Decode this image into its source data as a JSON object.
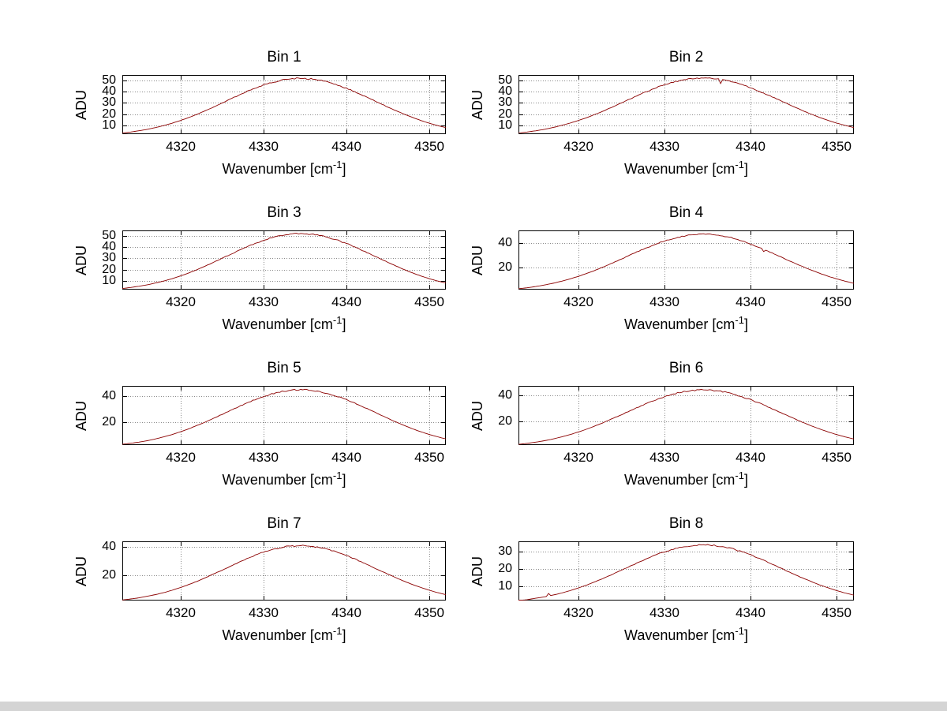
{
  "figure": {
    "background": "#ffffff",
    "window_edge_color": "#d4d4d4"
  },
  "chart_data": {
    "type": "line",
    "layout": "4x2-subplot-grid",
    "title": "",
    "y_label": "ADU",
    "line_color": "#8b0000",
    "grid_color": "#8a8a8a",
    "axis_color": "#000000",
    "grid": "on",
    "x": {
      "start": 4313,
      "step": 1,
      "lim": [
        4313,
        4352
      ],
      "ticks": [
        4320,
        4330,
        4340,
        4350
      ],
      "label": {
        "text": "Wavenumber [cm",
        "sup": "-1",
        "end": "]"
      }
    },
    "subplots": [
      {
        "type": "line",
        "title": "Bin 1",
        "ylim": [
          2,
          55
        ],
        "yticks": [
          10,
          20,
          30,
          40,
          50
        ],
        "noise": 0.6,
        "spikes": [],
        "values": [
          3.0,
          3.9,
          5.0,
          6.3,
          7.9,
          9.7,
          11.8,
          14.2,
          16.9,
          19.8,
          23.0,
          26.3,
          29.8,
          33.3,
          36.7,
          40.1,
          43.1,
          45.9,
          48.2,
          50.0,
          51.3,
          51.9,
          51.9,
          51.3,
          50.0,
          48.2,
          45.9,
          43.1,
          40.1,
          36.7,
          33.3,
          29.8,
          26.3,
          23.0,
          19.8,
          16.9,
          14.2,
          11.8,
          9.7,
          7.9
        ]
      },
      {
        "type": "line",
        "title": "Bin 2",
        "ylim": [
          2,
          55
        ],
        "yticks": [
          10,
          20,
          30,
          40,
          50
        ],
        "noise": 0.6,
        "spikes": [
          {
            "x": 4336.5,
            "dy": -3.5
          }
        ],
        "values": [
          3.0,
          3.9,
          5.0,
          6.3,
          7.9,
          9.8,
          11.9,
          14.3,
          17.0,
          20.0,
          23.2,
          26.6,
          30.1,
          33.6,
          37.1,
          40.4,
          43.6,
          46.3,
          48.7,
          50.5,
          51.8,
          52.4,
          52.4,
          51.8,
          50.5,
          48.7,
          46.3,
          43.6,
          40.4,
          37.1,
          33.6,
          30.1,
          26.6,
          23.2,
          20.0,
          17.0,
          14.3,
          11.9,
          9.8,
          7.9
        ]
      },
      {
        "type": "line",
        "title": "Bin 3",
        "ylim": [
          2,
          55
        ],
        "yticks": [
          10,
          20,
          30,
          40,
          50
        ],
        "noise": 0.6,
        "spikes": [],
        "values": [
          3.0,
          3.9,
          5.0,
          6.3,
          7.9,
          9.7,
          11.8,
          14.2,
          16.9,
          19.9,
          23.1,
          26.5,
          29.9,
          33.4,
          36.9,
          40.2,
          43.3,
          46.0,
          48.4,
          50.2,
          51.5,
          52.1,
          52.1,
          51.5,
          50.2,
          48.4,
          46.0,
          43.3,
          40.2,
          36.9,
          33.4,
          29.9,
          26.5,
          23.1,
          19.9,
          16.9,
          14.2,
          11.8,
          9.7,
          7.9
        ]
      },
      {
        "type": "line",
        "title": "Bin 4",
        "ylim": [
          2,
          50
        ],
        "yticks": [
          20,
          40
        ],
        "noise": 0.5,
        "spikes": [
          {
            "x": 4341.5,
            "dy": -2.0
          }
        ],
        "values": [
          2.7,
          3.5,
          4.5,
          5.7,
          7.1,
          8.8,
          10.7,
          12.8,
          15.3,
          17.9,
          20.8,
          23.8,
          26.9,
          30.1,
          33.2,
          36.2,
          39.0,
          41.5,
          43.6,
          45.2,
          46.4,
          46.9,
          46.9,
          46.4,
          45.2,
          43.6,
          41.5,
          39.0,
          36.2,
          33.2,
          30.1,
          26.9,
          23.8,
          20.8,
          17.9,
          15.3,
          12.8,
          10.7,
          8.8,
          7.1
        ]
      },
      {
        "type": "line",
        "title": "Bin 5",
        "ylim": [
          2,
          48
        ],
        "yticks": [
          20,
          40
        ],
        "noise": 0.5,
        "spikes": [],
        "values": [
          2.6,
          3.4,
          4.3,
          5.4,
          6.8,
          8.4,
          10.2,
          12.3,
          14.6,
          17.2,
          19.9,
          22.8,
          25.8,
          28.8,
          31.8,
          34.7,
          37.3,
          39.7,
          41.7,
          43.3,
          44.4,
          44.9,
          44.9,
          44.4,
          43.3,
          41.7,
          39.7,
          37.3,
          34.7,
          31.8,
          28.8,
          25.8,
          22.8,
          19.9,
          17.2,
          14.6,
          12.3,
          10.2,
          8.4,
          6.8
        ]
      },
      {
        "type": "line",
        "title": "Bin 6",
        "ylim": [
          2,
          47
        ],
        "yticks": [
          20,
          40
        ],
        "noise": 0.55,
        "spikes": [],
        "values": [
          2.5,
          3.3,
          4.2,
          5.3,
          6.6,
          8.2,
          10.0,
          12.0,
          14.3,
          16.8,
          19.4,
          22.3,
          25.2,
          28.2,
          31.1,
          33.9,
          36.5,
          38.8,
          40.8,
          42.3,
          43.4,
          43.9,
          43.9,
          43.4,
          42.3,
          40.8,
          38.8,
          36.5,
          33.9,
          31.1,
          28.2,
          25.2,
          22.3,
          19.4,
          16.8,
          14.3,
          12.0,
          10.0,
          8.2,
          6.6
        ]
      },
      {
        "type": "line",
        "title": "Bin 7",
        "ylim": [
          2,
          44
        ],
        "yticks": [
          20,
          40
        ],
        "noise": 0.5,
        "spikes": [],
        "values": [
          2.4,
          3.1,
          3.9,
          5.0,
          6.2,
          7.6,
          9.3,
          11.2,
          13.3,
          15.6,
          18.1,
          20.8,
          23.5,
          26.2,
          29.0,
          31.6,
          34.0,
          36.2,
          38.0,
          39.4,
          40.4,
          40.9,
          40.9,
          40.4,
          39.4,
          38.0,
          36.2,
          34.0,
          31.6,
          29.0,
          26.2,
          23.5,
          20.8,
          18.1,
          15.6,
          13.3,
          11.2,
          9.3,
          7.6,
          6.2
        ]
      },
      {
        "type": "line",
        "title": "Bin 8",
        "ylim": [
          2,
          36
        ],
        "yticks": [
          10,
          20,
          30
        ],
        "noise": 0.4,
        "spikes": [
          {
            "x": 4316.5,
            "dy": 1.5
          }
        ],
        "values": [
          2.0,
          2.5,
          3.3,
          4.1,
          5.1,
          6.3,
          7.7,
          9.3,
          11.0,
          13.0,
          15.0,
          17.2,
          19.5,
          21.8,
          24.0,
          26.2,
          28.2,
          30.0,
          31.5,
          32.7,
          33.5,
          34.0,
          34.0,
          33.5,
          32.7,
          31.5,
          30.0,
          28.2,
          26.2,
          24.0,
          21.8,
          19.5,
          17.2,
          15.0,
          13.0,
          11.0,
          9.3,
          7.7,
          6.3,
          5.1
        ]
      }
    ]
  }
}
